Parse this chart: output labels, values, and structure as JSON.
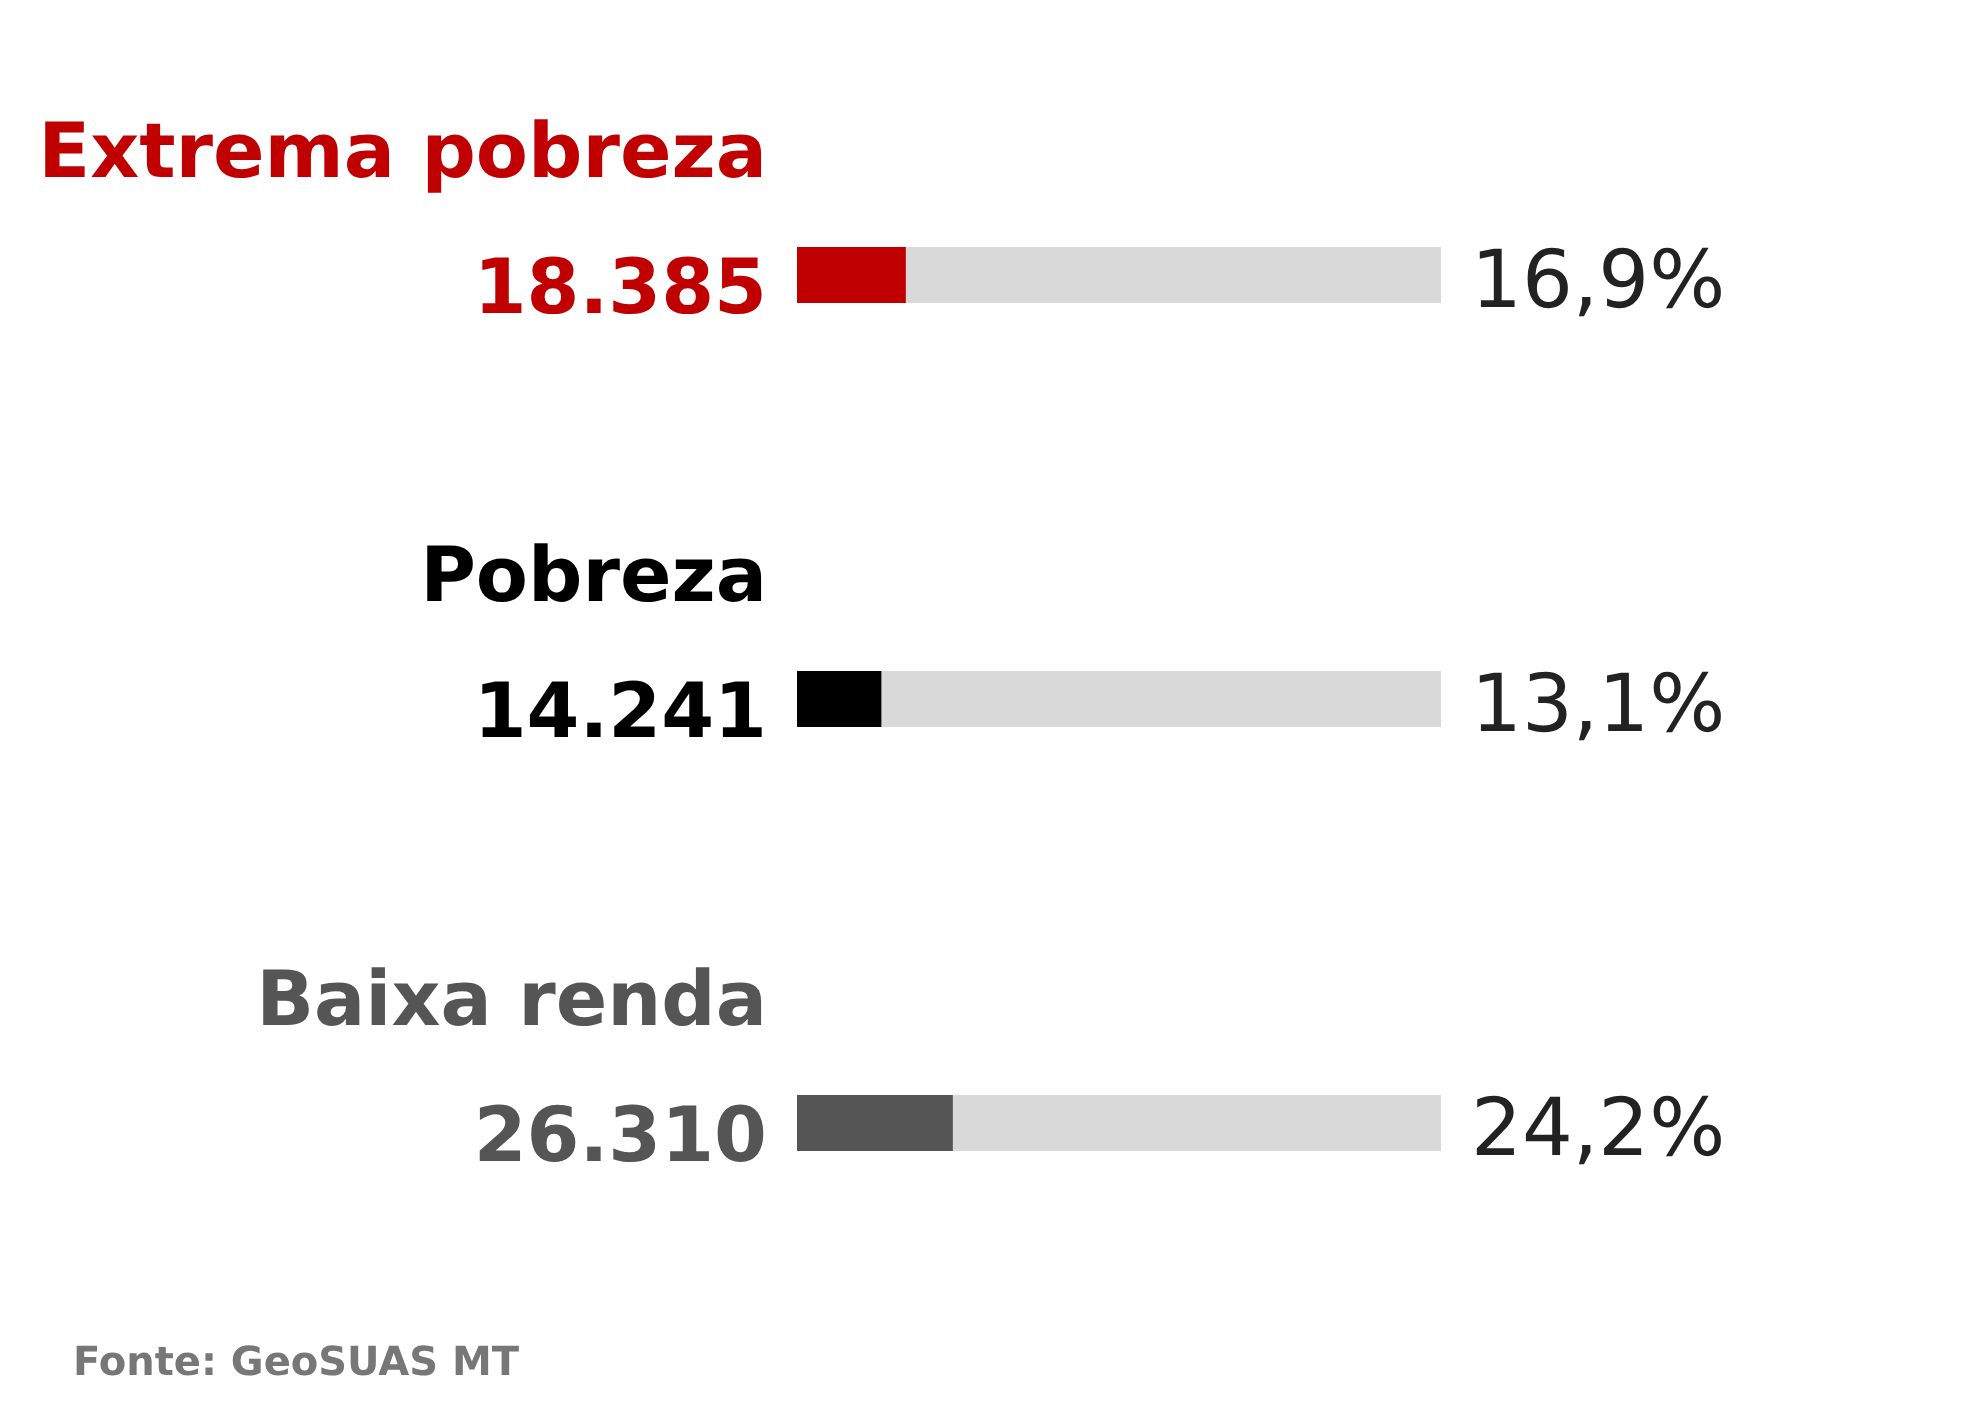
{
  "chart_data": {
    "type": "bar",
    "orientation": "horizontal",
    "categories": [
      "Extrema pobreza",
      "Pobreza",
      "Baixa renda"
    ],
    "values": [
      16.9,
      13.1,
      24.2
    ],
    "colors": [
      "#c00000",
      "#000000",
      "#555555"
    ],
    "value_labels": [
      "16,9%",
      "13,1%",
      "24,2%"
    ],
    "xlim": [
      0,
      100
    ],
    "tick_labels": false,
    "annotations": [
      "18.385",
      "14.241",
      "26.310",
      "Fonte: GeoSUAS MT"
    ]
  }
}
